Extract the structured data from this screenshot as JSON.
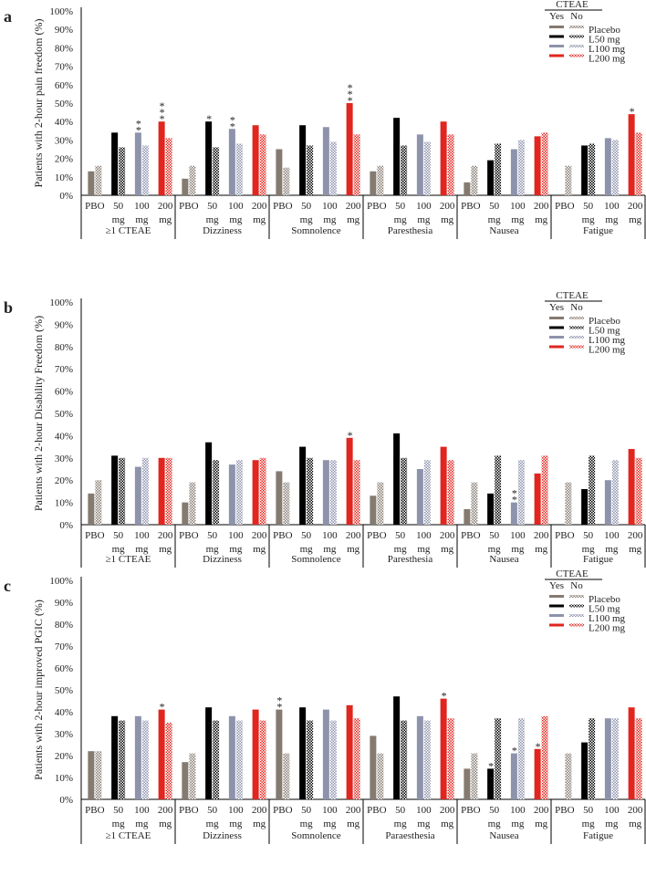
{
  "legend": {
    "title": "CTEAE",
    "yes": "Yes",
    "no": "No",
    "entries": [
      {
        "label": "Placebo",
        "color": "#857a70"
      },
      {
        "label": "L50 mg",
        "color": "#000000"
      },
      {
        "label": "L100 mg",
        "color": "#8e93ac"
      },
      {
        "label": "L200 mg",
        "color": "#e0261f"
      }
    ]
  },
  "chart_data": [
    {
      "type": "bar",
      "panel_letter": "a",
      "ylabel": "Patients with 2-hour pain freedom (%)",
      "ylim": [
        0,
        100
      ],
      "yticks": [
        "0%",
        "10%",
        "20%",
        "30%",
        "40%",
        "50%",
        "60%",
        "70%",
        "80%",
        "90%",
        "100%"
      ],
      "dose_labels": [
        [
          "PBO",
          ""
        ],
        [
          "50",
          "mg"
        ],
        [
          "100",
          "mg"
        ],
        [
          "200",
          "mg"
        ]
      ],
      "categories": [
        "≥1 CTEAE",
        "Dizziness",
        "Somnolence",
        "Paresthesia",
        "Nausea",
        "Fatigue"
      ],
      "series_yes": [
        [
          13,
          34,
          34,
          40
        ],
        [
          9,
          40,
          36,
          38
        ],
        [
          25,
          38,
          37,
          50
        ],
        [
          13,
          42,
          33,
          40
        ],
        [
          7,
          19,
          25,
          32
        ],
        [
          null,
          27,
          31,
          44
        ]
      ],
      "series_no": [
        [
          16,
          26,
          27,
          31
        ],
        [
          16,
          26,
          28,
          33
        ],
        [
          15,
          27,
          29,
          33
        ],
        [
          16,
          27,
          29,
          33
        ],
        [
          16,
          28,
          30,
          34
        ],
        [
          16,
          28,
          30,
          34
        ]
      ],
      "annotations": [
        {
          "category": 0,
          "dose": 2,
          "text": "**"
        },
        {
          "category": 0,
          "dose": 3,
          "text": "***"
        },
        {
          "category": 1,
          "dose": 1,
          "text": "*"
        },
        {
          "category": 1,
          "dose": 2,
          "text": "**"
        },
        {
          "category": 2,
          "dose": 3,
          "text": "***"
        },
        {
          "category": 5,
          "dose": 3,
          "text": "*"
        }
      ]
    },
    {
      "type": "bar",
      "panel_letter": "b",
      "ylabel": "Patients with 2-hour  Disability Freedom (%)",
      "ylim": [
        0,
        100
      ],
      "yticks": [
        "0%",
        "10%",
        "20%",
        "30%",
        "40%",
        "50%",
        "60%",
        "70%",
        "80%",
        "90%",
        "100%"
      ],
      "dose_labels": [
        [
          "PBO",
          ""
        ],
        [
          "50",
          "mg"
        ],
        [
          "100",
          "mg"
        ],
        [
          "200",
          "mg"
        ]
      ],
      "categories": [
        "≥1 CTEAE",
        "Dizziness",
        "Somnolence",
        "Paresthesia",
        "Nausea",
        "Fatigue"
      ],
      "series_yes": [
        [
          14,
          31,
          26,
          30
        ],
        [
          10,
          37,
          27,
          29
        ],
        [
          24,
          35,
          29,
          39
        ],
        [
          13,
          41,
          25,
          35
        ],
        [
          7,
          14,
          10,
          23
        ],
        [
          null,
          16,
          20,
          34
        ]
      ],
      "series_no": [
        [
          20,
          30,
          30,
          30
        ],
        [
          19,
          29,
          29,
          30
        ],
        [
          19,
          30,
          29,
          29
        ],
        [
          19,
          30,
          29,
          29
        ],
        [
          19,
          31,
          29,
          31
        ],
        [
          19,
          31,
          29,
          30
        ]
      ],
      "annotations": [
        {
          "category": 2,
          "dose": 3,
          "text": "*"
        },
        {
          "category": 4,
          "dose": 2,
          "text": "**"
        }
      ]
    },
    {
      "type": "bar",
      "panel_letter": "c",
      "ylabel": "Patients with 2-hour improved PGIC (%)",
      "ylim": [
        0,
        100
      ],
      "yticks": [
        "0%",
        "10%",
        "20%",
        "30%",
        "40%",
        "50%",
        "60%",
        "70%",
        "80%",
        "90%",
        "100%"
      ],
      "dose_labels": [
        [
          "PBO",
          ""
        ],
        [
          "50",
          "mg"
        ],
        [
          "100",
          "mg"
        ],
        [
          "200",
          "mg"
        ]
      ],
      "categories": [
        "≥1 CTEAE",
        "Dizziness",
        "Somnolence",
        "Paraesthesia",
        "Nausea",
        "Fatigue"
      ],
      "series_yes": [
        [
          22,
          38,
          38,
          41
        ],
        [
          17,
          42,
          38,
          41
        ],
        [
          41,
          42,
          41,
          43
        ],
        [
          29,
          47,
          38,
          46
        ],
        [
          14,
          14,
          21,
          23
        ],
        [
          null,
          26,
          37,
          42
        ]
      ],
      "series_no": [
        [
          22,
          36,
          36,
          35
        ],
        [
          21,
          36,
          36,
          36
        ],
        [
          21,
          36,
          36,
          37
        ],
        [
          21,
          36,
          36,
          37
        ],
        [
          21,
          37,
          37,
          38
        ],
        [
          21,
          37,
          37,
          37
        ]
      ],
      "annotations": [
        {
          "category": 0,
          "dose": 3,
          "text": "*"
        },
        {
          "category": 2,
          "dose": 0,
          "text": "**"
        },
        {
          "category": 3,
          "dose": 3,
          "text": "*"
        },
        {
          "category": 4,
          "dose": 1,
          "text": "*"
        },
        {
          "category": 4,
          "dose": 2,
          "text": "*"
        },
        {
          "category": 4,
          "dose": 3,
          "text": "*"
        }
      ]
    }
  ]
}
